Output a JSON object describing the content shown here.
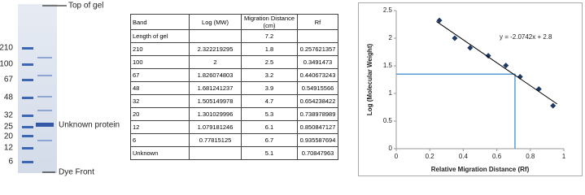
{
  "gel": {
    "ladder_labels": [
      "210",
      "100",
      "67",
      "48",
      "32",
      "25",
      "20",
      "12",
      "6"
    ],
    "annotations": {
      "top": "Top of gel",
      "unknown": "Unknown protein",
      "dye": "Dye Front"
    }
  },
  "table": {
    "header": [
      "Band",
      "Log (MW)",
      "Migration Distance (cm)",
      "Rf"
    ],
    "rows": [
      [
        "Length of gel",
        null,
        "7.2",
        null
      ],
      [
        "210",
        "2.322219295",
        "1.8",
        "0.257621357"
      ],
      [
        "100",
        "2",
        "2.5",
        "0.3491473"
      ],
      [
        "67",
        "1.826074803",
        "3.2",
        "0.440673243"
      ],
      [
        "48",
        "1.681241237",
        "3.9",
        "0.54915566"
      ],
      [
        "32",
        "1.505149978",
        "4.7",
        "0.654238422"
      ],
      [
        "20",
        "1.301029996",
        "5.3",
        "0.738978989"
      ],
      [
        "12",
        "1.079181246",
        "6.1",
        "0.850847127"
      ],
      [
        "6",
        "0.77815125",
        "6.7",
        "0.935587694"
      ],
      [
        "Unknown",
        null,
        "5.1",
        "0.70847963"
      ]
    ]
  },
  "chart_data": {
    "type": "scatter",
    "xlabel": "Relative Migration Distance (Rf)",
    "ylabel": "Log (Molecular Weight)",
    "series": [
      {
        "name": "Log (MW)",
        "color": "#1f3864",
        "x": [
          0.257621357,
          0.3491473,
          0.440673243,
          0.54915566,
          0.654238422,
          0.738978989,
          0.850847127,
          0.935587694
        ],
        "values": [
          2.322219295,
          2,
          1.826074803,
          1.681241237,
          1.505149978,
          1.301029996,
          1.079181246,
          0.77815125
        ]
      }
    ],
    "trendline": {
      "slope": -2.0742,
      "intercept": 2.8,
      "x": [
        0.24,
        0.96
      ],
      "color": "#000000",
      "label": "y = -2.0742x + 2.8"
    },
    "guide": {
      "x": 0.70847963,
      "y": 1.35,
      "color": "#5b9bd5"
    },
    "xlim": [
      0,
      1
    ],
    "xticks": [
      0,
      0.2,
      0.4,
      0.6,
      0.8,
      1
    ],
    "ylim": [
      0,
      2.5
    ],
    "yticks": [
      0,
      0.5,
      1,
      1.5,
      2,
      2.5
    ],
    "grid": false
  }
}
